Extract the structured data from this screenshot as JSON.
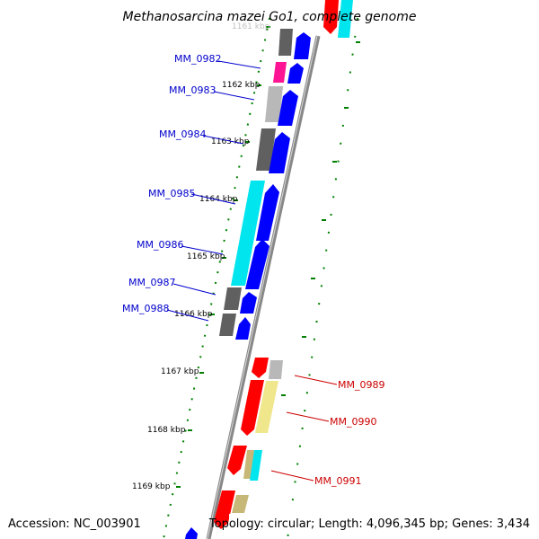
{
  "title": "Methanosarcina mazei Go1, complete genome",
  "footer": {
    "accession": "Accession: NC_003901",
    "topology": "Topology: circular; Length: 4,096,345 bp; Genes: 3,434"
  },
  "kbp_labels": [
    "1161 kbp",
    "1162 kbp",
    "1163 kbp",
    "1164 kbp",
    "1165 kbp",
    "1166 kbp",
    "1167 kbp",
    "1168 kbp",
    "1169 kbp"
  ],
  "genes_forward": [
    "MM_0982",
    "MM_0983",
    "MM_0984",
    "MM_0985",
    "MM_0986",
    "MM_0987",
    "MM_0988"
  ],
  "genes_reverse": [
    "MM_0989",
    "MM_0990",
    "MM_0991"
  ],
  "colors": {
    "backbone": "#888888",
    "tick": "#008000",
    "forward_label": "#0000cc",
    "reverse_label": "#cc0000",
    "cds_fwd": "#0000ff",
    "cds_rev": "#ff0000",
    "cog_dark_gray": "#606060",
    "cog_light_gray": "#b8b8b8",
    "cog_magenta": "#ff1493",
    "cog_cyan": "#00e5ee",
    "cog_khaki": "#f0e68c",
    "cog_tan": "#c8b878"
  }
}
